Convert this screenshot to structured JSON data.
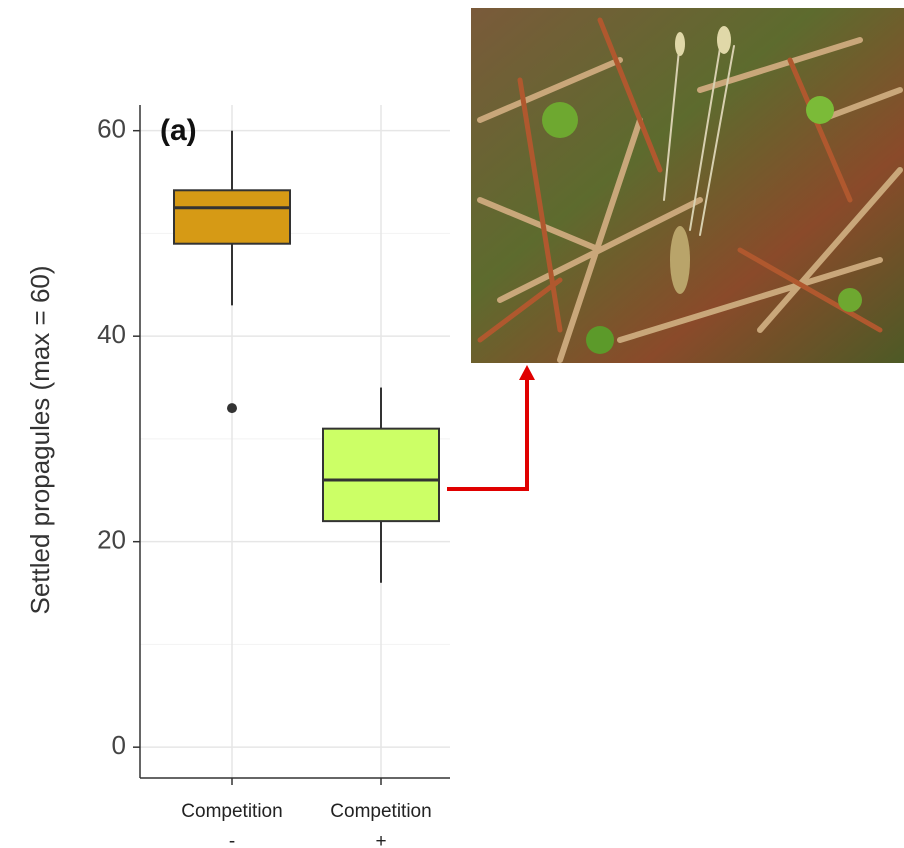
{
  "chart_data": {
    "type": "box",
    "panel_label": "(a)",
    "y_label": "Settled propagules (max = 60)",
    "categories": [
      "Competition -",
      "Competition +"
    ],
    "colors": [
      "#d69a15",
      "#ccff66"
    ],
    "stats": [
      {
        "whisker_low": 43,
        "q1": 49,
        "median": 52.5,
        "q3": 54.2,
        "whisker_high": 60,
        "outliers": [
          33
        ]
      },
      {
        "whisker_low": 16,
        "q1": 22,
        "median": 26,
        "q3": 31,
        "whisker_high": 35,
        "outliers": []
      }
    ],
    "ylim": [
      -3,
      62.5
    ],
    "yticks": [
      0,
      20,
      40,
      60
    ],
    "minor_grid": [
      10,
      30,
      50
    ],
    "grid": true
  }
}
